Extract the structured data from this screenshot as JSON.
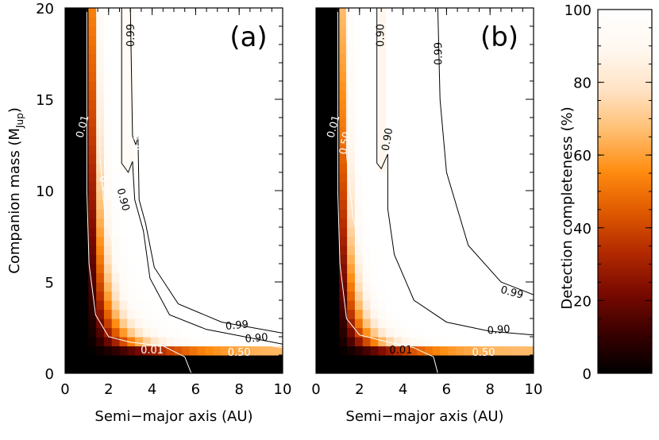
{
  "chart_data": [
    {
      "type": "heatmap",
      "panel_label": "(a)",
      "xlabel": "Semi−major axis (AU)",
      "ylabel": "Companion mass (M",
      "ylabel_sub": "Jup",
      "ylabel_close": ")",
      "xlim": [
        0,
        10
      ],
      "ylim": [
        0,
        20
      ],
      "xticks": [
        "0",
        "2",
        "4",
        "6",
        "8",
        "10"
      ],
      "yticks": [
        "0",
        "5",
        "10",
        "15",
        "20"
      ],
      "contours": [
        {
          "level_label": "0.01",
          "line_color": "#ffffff",
          "points": [
            [
              1.0,
              20
            ],
            [
              1.0,
              10
            ],
            [
              1.1,
              6
            ],
            [
              1.4,
              3.2
            ],
            [
              2.0,
              2.0
            ],
            [
              3.0,
              1.7
            ],
            [
              4.5,
              1.5
            ],
            [
              5.5,
              0.9
            ],
            [
              5.8,
              0
            ]
          ]
        },
        {
          "level_label": "0.50",
          "line_color": "#ffffff",
          "points": [
            [
              1.5,
              20
            ],
            [
              1.6,
              12
            ],
            [
              1.8,
              9
            ],
            [
              2.3,
              6.5
            ],
            [
              2.8,
              4.2
            ],
            [
              3.6,
              3.0
            ],
            [
              5.0,
              2.2
            ],
            [
              7.0,
              1.9
            ],
            [
              10.0,
              1.4
            ]
          ]
        },
        {
          "level_label": "0.90",
          "line_color": "#000000",
          "points": [
            [
              2.6,
              20
            ],
            [
              2.6,
              11.5
            ],
            [
              2.9,
              11.0
            ],
            [
              3.1,
              11.6
            ],
            [
              3.2,
              9.5
            ],
            [
              3.6,
              7.8
            ],
            [
              3.9,
              5.2
            ],
            [
              4.8,
              3.2
            ],
            [
              6.5,
              2.4
            ],
            [
              10.0,
              1.6
            ]
          ]
        },
        {
          "level_label": "0.99",
          "line_color": "#000000",
          "points": [
            [
              3.0,
              20
            ],
            [
              3.1,
              13.0
            ],
            [
              3.25,
              12.5
            ],
            [
              3.35,
              13.0
            ],
            [
              3.4,
              9.5
            ],
            [
              3.7,
              8.2
            ],
            [
              4.1,
              5.8
            ],
            [
              5.2,
              3.8
            ],
            [
              7.2,
              2.8
            ],
            [
              10.0,
              2.2
            ]
          ]
        }
      ],
      "contour_labels": [
        {
          "text": "0.99",
          "x": 3.05,
          "y": 18.5,
          "angle": -90,
          "color": "#000000"
        },
        {
          "text": "0.01",
          "x": 0.82,
          "y": 13.5,
          "angle": -75,
          "color": "#ffffff"
        },
        {
          "text": "0.99",
          "x": 3.35,
          "y": 12.8,
          "angle": -80,
          "color": "#ffffff"
        },
        {
          "text": "0.50",
          "x": 1.85,
          "y": 10.2,
          "angle": 70,
          "color": "#ffffff"
        },
        {
          "text": "0.90",
          "x": 2.65,
          "y": 9.5,
          "angle": 75,
          "color": "#000000"
        },
        {
          "text": "0.99",
          "x": 7.9,
          "y": 2.6,
          "angle": -5,
          "color": "#000000"
        },
        {
          "text": "0.90",
          "x": 8.8,
          "y": 1.9,
          "angle": -5,
          "color": "#000000"
        },
        {
          "text": "0.01",
          "x": 4.0,
          "y": 1.25,
          "angle": 0,
          "color": "#ffffff"
        },
        {
          "text": "0.50",
          "x": 8.0,
          "y": 1.1,
          "angle": 0,
          "color": "#ffffff"
        }
      ]
    },
    {
      "type": "heatmap",
      "panel_label": "(b)",
      "xlabel": "Semi−major axis (AU)",
      "xlim": [
        0,
        10
      ],
      "ylim": [
        0,
        20
      ],
      "xticks": [
        "0",
        "2",
        "4",
        "6",
        "8",
        "10"
      ],
      "yticks": [
        "",
        "",
        "",
        "",
        ""
      ],
      "contours": [
        {
          "level_label": "0.01",
          "line_color": "#ffffff",
          "points": [
            [
              1.0,
              20
            ],
            [
              1.0,
              10
            ],
            [
              1.1,
              6
            ],
            [
              1.4,
              3.0
            ],
            [
              2.0,
              2.1
            ],
            [
              3.0,
              1.8
            ],
            [
              4.5,
              1.4
            ],
            [
              5.4,
              0.9
            ],
            [
              5.6,
              0
            ]
          ]
        },
        {
          "level_label": "0.50",
          "line_color": "#ffffff",
          "points": [
            [
              1.4,
              20
            ],
            [
              1.4,
              12
            ],
            [
              1.7,
              8.5
            ],
            [
              2.3,
              6.0
            ],
            [
              3.0,
              4.0
            ],
            [
              4.0,
              2.8
            ],
            [
              6.0,
              2.1
            ],
            [
              10.0,
              1.6
            ]
          ]
        },
        {
          "level_label": "0.90",
          "line_color": "#000000",
          "points": [
            [
              2.8,
              20
            ],
            [
              2.8,
              11.5
            ],
            [
              3.0,
              11.2
            ],
            [
              3.3,
              12.0
            ],
            [
              3.3,
              9.0
            ],
            [
              3.6,
              6.5
            ],
            [
              4.5,
              4.0
            ],
            [
              6.0,
              2.8
            ],
            [
              8.0,
              2.3
            ],
            [
              10.0,
              2.1
            ]
          ]
        },
        {
          "level_label": "0.99",
          "line_color": "#000000",
          "points": [
            [
              5.6,
              20
            ],
            [
              5.7,
              15
            ],
            [
              6.0,
              11
            ],
            [
              7.0,
              7.0
            ],
            [
              8.5,
              5.0
            ],
            [
              10.0,
              4.3
            ]
          ]
        }
      ],
      "contour_labels": [
        {
          "text": "0.90",
          "x": 3.0,
          "y": 18.5,
          "angle": -90,
          "color": "#000000"
        },
        {
          "text": "0.99",
          "x": 5.65,
          "y": 17.5,
          "angle": -90,
          "color": "#000000"
        },
        {
          "text": "0.01",
          "x": 0.82,
          "y": 13.5,
          "angle": -75,
          "color": "#ffffff"
        },
        {
          "text": "0.50",
          "x": 1.35,
          "y": 12.6,
          "angle": -80,
          "color": "#ffffff"
        },
        {
          "text": "0.90",
          "x": 3.3,
          "y": 12.8,
          "angle": -80,
          "color": "#000000"
        },
        {
          "text": "0.99",
          "x": 9.0,
          "y": 4.4,
          "angle": 15,
          "color": "#000000"
        },
        {
          "text": "0.90",
          "x": 8.4,
          "y": 2.35,
          "angle": -5,
          "color": "#000000"
        },
        {
          "text": "0.01",
          "x": 3.9,
          "y": 1.25,
          "angle": 0,
          "color": "#000000"
        },
        {
          "text": "0.50",
          "x": 7.7,
          "y": 1.1,
          "angle": 0,
          "color": "#ffffff"
        }
      ]
    },
    {
      "type": "colorbar",
      "label": "Detection completeness (%)",
      "range": [
        0,
        100
      ],
      "ticks": [
        "0",
        "20",
        "40",
        "60",
        "80",
        "100"
      ],
      "colormap": [
        "#000000",
        "#3a0000",
        "#7a0a00",
        "#b32a00",
        "#e05a00",
        "#ff8c10",
        "#ffbe70",
        "#ffe2c4",
        "#fff8f0",
        "#ffffff"
      ]
    }
  ]
}
